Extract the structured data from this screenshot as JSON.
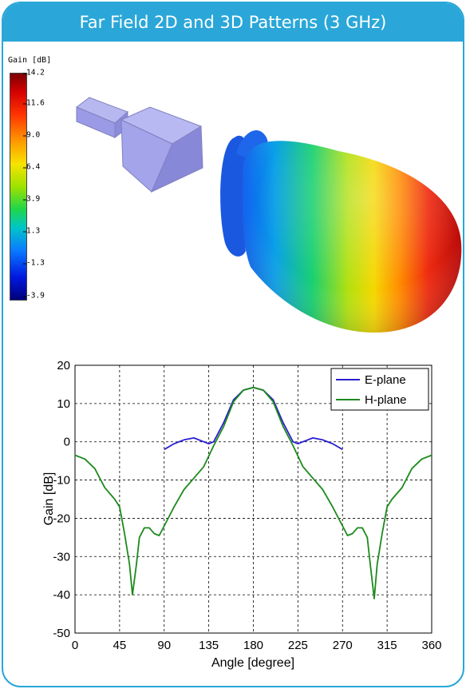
{
  "header": {
    "title": "Far Field 2D and 3D Patterns (3 GHz)"
  },
  "colorbar": {
    "label": "Gain [dB]",
    "ticks": [
      "14.2",
      "11.6",
      "9.0",
      "6.4",
      "3.9",
      "1.3",
      "-1.3",
      "-3.9"
    ]
  },
  "figure_3d": {
    "object": "horn-antenna",
    "pattern": "radiation-lobe"
  },
  "chart_data": {
    "type": "line",
    "xlabel": "Angle [degree]",
    "ylabel": "Gain [dB]",
    "xlim": [
      0,
      360
    ],
    "ylim": [
      -50,
      20
    ],
    "xticks": [
      0,
      45,
      90,
      135,
      180,
      225,
      270,
      315,
      360
    ],
    "yticks": [
      20,
      10,
      0,
      -10,
      -20,
      -30,
      -40,
      -50
    ],
    "grid": true,
    "legend_position": "top-right",
    "series": [
      {
        "name": "E-plane",
        "color": "#2a1fd0",
        "x": [
          90,
          100,
          110,
          120,
          130,
          135,
          140,
          150,
          160,
          170,
          180,
          190,
          200,
          210,
          220,
          225,
          230,
          240,
          250,
          260,
          270
        ],
        "y": [
          -2,
          -0.5,
          0.5,
          1,
          0,
          -0.5,
          0,
          5,
          11,
          13.5,
          14.2,
          13.5,
          11,
          5,
          0,
          -0.5,
          0,
          1,
          0.5,
          -0.5,
          -2
        ]
      },
      {
        "name": "H-plane",
        "color": "#1c8a1c",
        "x": [
          0,
          10,
          20,
          30,
          40,
          45,
          50,
          55,
          58,
          62,
          65,
          70,
          75,
          80,
          85,
          90,
          100,
          110,
          120,
          130,
          140,
          150,
          160,
          170,
          180,
          190,
          200,
          210,
          220,
          230,
          240,
          250,
          260,
          270,
          275,
          280,
          285,
          290,
          295,
          298,
          302,
          305,
          310,
          315,
          320,
          330,
          340,
          350,
          360
        ],
        "y": [
          -3.5,
          -4.5,
          -7,
          -12,
          -15,
          -17,
          -24,
          -32,
          -40,
          -32,
          -25,
          -22.5,
          -22.5,
          -24,
          -24.5,
          -22,
          -17,
          -12.5,
          -9.5,
          -6.5,
          -1,
          4,
          10.5,
          13.5,
          14.2,
          13.5,
          10.5,
          4,
          -1,
          -6.5,
          -9.5,
          -12.5,
          -17,
          -22,
          -24.5,
          -24,
          -22.5,
          -22.5,
          -25,
          -32,
          -41,
          -32,
          -24,
          -17,
          -15,
          -12,
          -7,
          -4.5,
          -3.5
        ]
      }
    ]
  }
}
